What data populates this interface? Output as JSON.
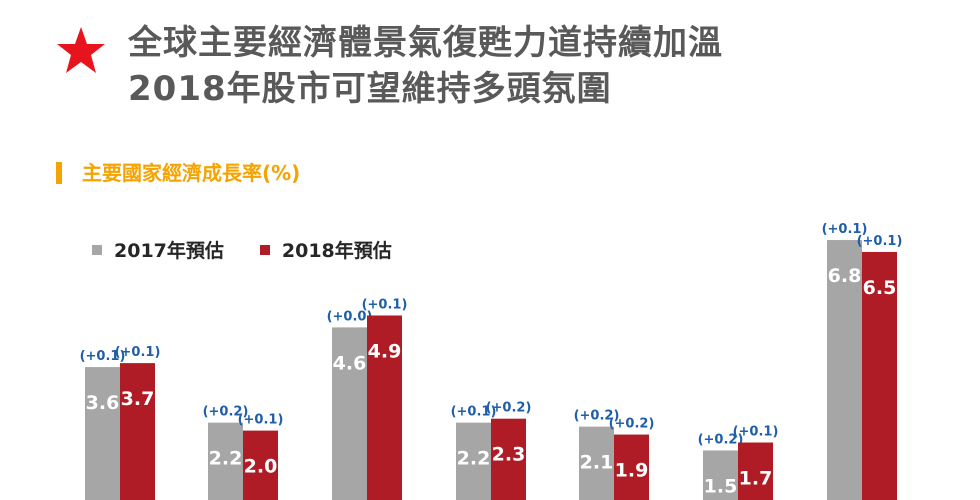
{
  "header": {
    "icon": "star-icon",
    "title_line1": "全球主要經濟體景氣復甦力道持續加溫",
    "title_line2": "2018年股市可望維持多頭氛圍"
  },
  "colors": {
    "star": "#e8141d",
    "title": "#595959",
    "subtitle": "#f5a300",
    "series_2017": "#a6a6a6",
    "series_2018": "#b01c26",
    "change_label": "#1f5fa8"
  },
  "chart_data": {
    "type": "bar",
    "title": "主要國家經濟成長率(%)",
    "xlabel": "",
    "ylabel": "",
    "ylim": [
      0,
      7.1
    ],
    "grid": false,
    "legend_position": "top-left",
    "categories": [
      "",
      "",
      "",
      "",
      "",
      "",
      ""
    ],
    "series": [
      {
        "name": "2017年預估",
        "values": [
          3.6,
          2.2,
          4.6,
          2.2,
          2.1,
          1.5,
          6.8
        ],
        "value_labels": [
          "3.6",
          "2.2",
          "4.6",
          "2.2",
          "2.1",
          "1.5",
          "6.8"
        ],
        "change_labels": [
          "(+0.1)",
          "(+0.2)",
          "(+0.0)",
          "(+0.1)",
          "(+0.2)",
          "(+0.2)",
          "(+0.1)"
        ]
      },
      {
        "name": "2018年預估",
        "values": [
          3.7,
          2.0,
          4.9,
          2.3,
          1.9,
          1.7,
          6.5
        ],
        "value_labels": [
          "3.7",
          "2.0",
          "4.9",
          "2.3",
          "1.9",
          "1.7",
          "6.5"
        ],
        "change_labels": [
          "(+0.1)",
          "(+0.1)",
          "(+0.1)",
          "(+0.2)",
          "(+0.2)",
          "(+0.1)",
          "(+0.1)"
        ]
      }
    ]
  }
}
